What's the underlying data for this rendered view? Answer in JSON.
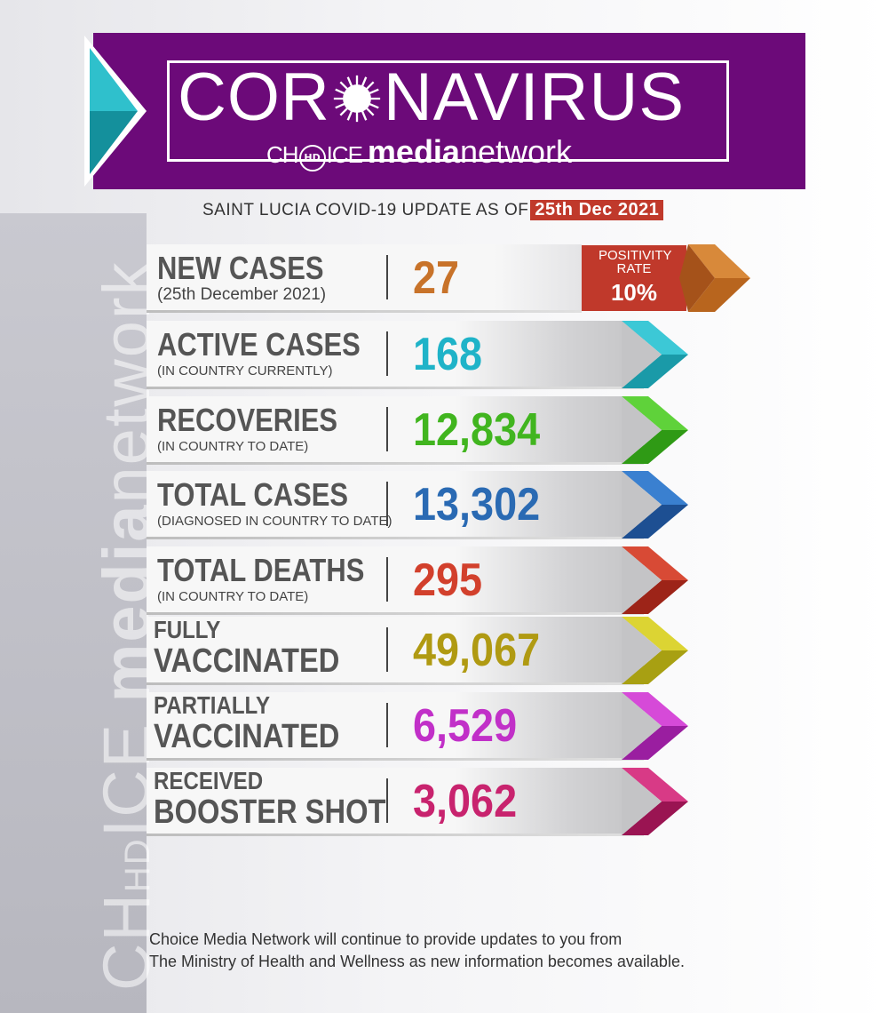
{
  "header": {
    "title_part1": "COR",
    "title_part2": "NAVIRUS",
    "brand_choice_a": "CH",
    "brand_hd": "HD",
    "brand_choice_b": "ICE",
    "brand_media": "media",
    "brand_network": "network"
  },
  "update": {
    "prefix": "SAINT LUCIA COVID-19 UPDATE AS OF",
    "date": "25th Dec 2021"
  },
  "watermark": {
    "choice_a": "CH",
    "hd": "HD",
    "choice_b": "ICE",
    "media": "media",
    "network": "network"
  },
  "positivity": {
    "label": "POSITIVITY RATE",
    "value": "10%",
    "color": "#c0392b"
  },
  "stats": [
    {
      "label": "NEW CASES",
      "sub": "(25th December 2021)",
      "value": "27",
      "color": "#c8732a"
    },
    {
      "label": "ACTIVE CASES",
      "sub": "(IN COUNTRY CURRENTLY)",
      "value": "168",
      "color": "#1fb3c8"
    },
    {
      "label": "RECOVERIES",
      "sub": "(IN COUNTRY TO DATE)",
      "value": "12,834",
      "color": "#41b51f"
    },
    {
      "label": "TOTAL CASES",
      "sub": "(DIAGNOSED IN COUNTRY TO DATE)",
      "value": "13,302",
      "color": "#2a6ab3"
    },
    {
      "label": "TOTAL DEATHS",
      "sub": "(IN COUNTRY TO DATE)",
      "value": "295",
      "color": "#d2402c"
    },
    {
      "label_line1": "FULLY",
      "label_line2": "VACCINATED",
      "value": "49,067",
      "color": "#b09a12"
    },
    {
      "label_line1": "PARTIALLY",
      "label_line2": "VACCINATED",
      "value": "6,529",
      "color": "#c130c8"
    },
    {
      "label_line1": "RECEIVED",
      "label_line2": "BOOSTER SHOT",
      "value": "3,062",
      "color": "#c8236e"
    }
  ],
  "footer": {
    "line1": "Choice Media Network will continue to provide updates to you from",
    "line2": "The Ministry of Health and Wellness  as new information becomes available."
  },
  "colors": {
    "header_purple": "#6c0a79",
    "header_teal": "#22b3c0",
    "date_badge": "#c0392b"
  }
}
